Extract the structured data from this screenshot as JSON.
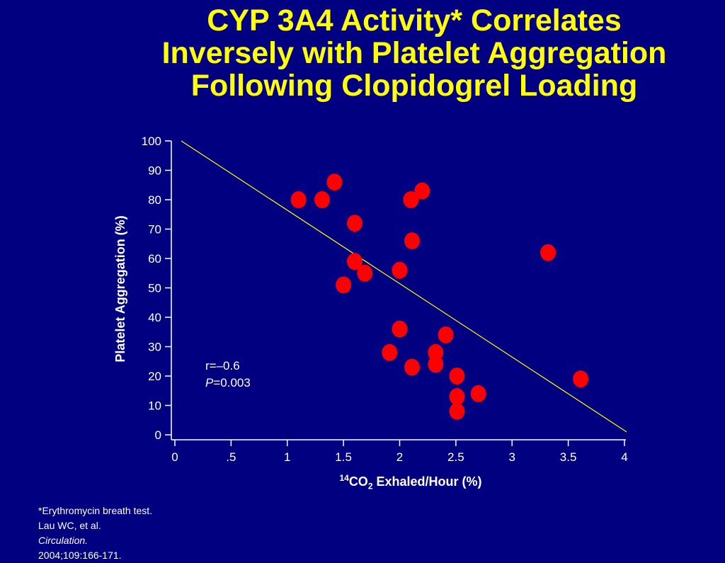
{
  "title": {
    "line1": "CYP 3A4 Activity* Correlates",
    "line2": "Inversely with Platelet Aggregation",
    "line3": "Following Clopidogrel Loading"
  },
  "stats": {
    "r_label": "r=–0.6",
    "p_italic": "P",
    "p_rest": "=0.003"
  },
  "xlabel": {
    "sup": "14",
    "co": "CO",
    "sub": "2",
    "rest": " Exhaled/Hour (%)"
  },
  "footnote": {
    "line1": "*Erythromycin breath test.",
    "line2_a": "Lau WC, et al. ",
    "line2_italic": "Circulation.",
    "line2_b": " 2004;109:166-171."
  },
  "colors": {
    "background": "#000080",
    "title": "#ffff00",
    "points": "#ff0000",
    "fit_line": "#ffff00",
    "axis": "#ffffff"
  },
  "chart_data": {
    "type": "scatter",
    "title": "CYP 3A4 Activity* Correlates Inversely with Platelet Aggregation Following Clopidogrel Loading",
    "xlabel": "14CO2 Exhaled/Hour (%)",
    "ylabel": "Platelet Aggregation (%)",
    "xlim": [
      0,
      4
    ],
    "ylim": [
      0,
      100
    ],
    "xticks": [
      0,
      0.5,
      1,
      1.5,
      2,
      2.5,
      3,
      3.5,
      4
    ],
    "xtick_labels": [
      "0",
      ".5",
      "1",
      "1.5",
      "2",
      "2.5",
      "3",
      "3.5",
      "4"
    ],
    "yticks": [
      0,
      10,
      20,
      30,
      40,
      50,
      60,
      70,
      80,
      90,
      100
    ],
    "ytick_labels": [
      "0",
      "10",
      "20",
      "30",
      "40",
      "50",
      "60",
      "70",
      "80",
      "90",
      "100"
    ],
    "points": [
      {
        "x": 1.1,
        "y": 80
      },
      {
        "x": 1.31,
        "y": 80
      },
      {
        "x": 1.42,
        "y": 86
      },
      {
        "x": 1.6,
        "y": 72
      },
      {
        "x": 1.6,
        "y": 59
      },
      {
        "x": 1.5,
        "y": 51
      },
      {
        "x": 1.69,
        "y": 55
      },
      {
        "x": 2.1,
        "y": 80
      },
      {
        "x": 2.2,
        "y": 83
      },
      {
        "x": 2.11,
        "y": 66
      },
      {
        "x": 2.0,
        "y": 56
      },
      {
        "x": 2.0,
        "y": 36
      },
      {
        "x": 1.91,
        "y": 28
      },
      {
        "x": 2.11,
        "y": 23
      },
      {
        "x": 2.41,
        "y": 34
      },
      {
        "x": 2.32,
        "y": 28
      },
      {
        "x": 2.32,
        "y": 24
      },
      {
        "x": 2.51,
        "y": 20
      },
      {
        "x": 2.51,
        "y": 13
      },
      {
        "x": 2.51,
        "y": 8
      },
      {
        "x": 2.7,
        "y": 14
      },
      {
        "x": 3.32,
        "y": 62
      },
      {
        "x": 3.61,
        "y": 19
      }
    ],
    "fit_line": {
      "x": [
        0,
        4
      ],
      "y": [
        100,
        1
      ]
    },
    "annotations": [
      "r=–0.6",
      "P=0.003"
    ]
  }
}
